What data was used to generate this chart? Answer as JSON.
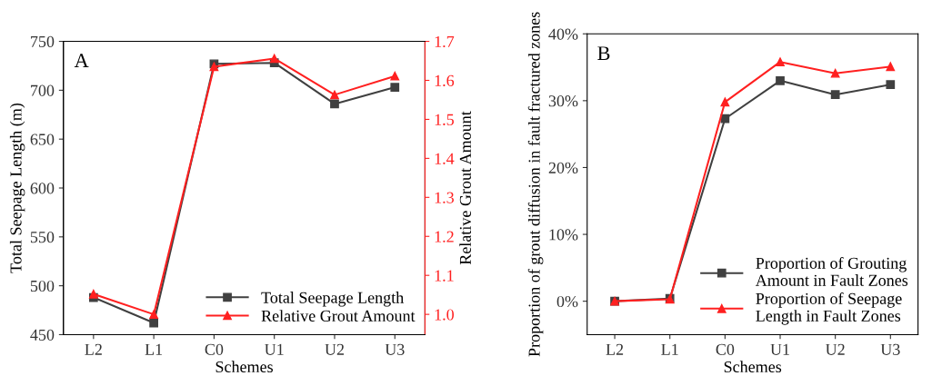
{
  "chart_data": [
    {
      "type": "line",
      "xlabel": "Schemes",
      "ylabel": "Total Seepage Length (m)",
      "y2label": "Relative Grout Amount",
      "annotations": [
        "A"
      ],
      "categories": [
        "L2",
        "L1",
        "C0",
        "U1",
        "U2",
        "U3"
      ],
      "series": [
        {
          "name": "Total Seepage Length",
          "color": "#404040",
          "marker": "square",
          "values": [
            488,
            462,
            727,
            728,
            686,
            703
          ]
        },
        {
          "name": "Relative Grout Amount",
          "color": "#ff2020",
          "marker": "triangle",
          "axis": "y2",
          "values": [
            1.052,
            1.0,
            1.635,
            1.656,
            1.563,
            1.611
          ]
        }
      ],
      "ylim": [
        450,
        750
      ],
      "yticks": [
        450,
        500,
        550,
        600,
        650,
        700,
        750
      ],
      "y2lim": [
        0.948,
        1.7
      ],
      "y2ticks": [
        {
          "value": 1.0,
          "label": "1.0"
        },
        {
          "value": 1.1,
          "label": "1.1"
        },
        {
          "value": 1.2,
          "label": "1.2"
        },
        {
          "value": 1.3,
          "label": "1.3"
        },
        {
          "value": 1.4,
          "label": "1.4"
        },
        {
          "value": 1.5,
          "label": "1.5"
        },
        {
          "value": 1.6,
          "label": "1.6"
        },
        {
          "value": 1.7,
          "label": "1.7"
        }
      ],
      "legend": "bottom right",
      "grid": false
    },
    {
      "type": "line",
      "xlabel": "Schemes",
      "ylabel": "Proportion of grout diffusion in fault fractured zones",
      "annotations": [
        "B"
      ],
      "categories": [
        "L2",
        "L1",
        "C0",
        "U1",
        "U2",
        "U3"
      ],
      "series": [
        {
          "name": "Proportion of Grouting\nAmount in Fault Zones",
          "color": "#404040",
          "marker": "square",
          "values": [
            0,
            0.4,
            27.3,
            33.0,
            30.9,
            32.4
          ]
        },
        {
          "name": "Proportion of Seepage\nLength in Fault Zones",
          "color": "#ff2020",
          "marker": "triangle",
          "values": [
            0,
            0.3,
            29.8,
            35.8,
            34.1,
            35.1
          ]
        }
      ],
      "ylim": [
        -5,
        40
      ],
      "yticks": [
        {
          "value": 0,
          "label": "0%"
        },
        {
          "value": 10,
          "label": "10%"
        },
        {
          "value": 20,
          "label": "20%"
        },
        {
          "value": 30,
          "label": "30%"
        },
        {
          "value": 40,
          "label": "40%"
        }
      ],
      "legend": "bottom right",
      "grid": false
    }
  ]
}
